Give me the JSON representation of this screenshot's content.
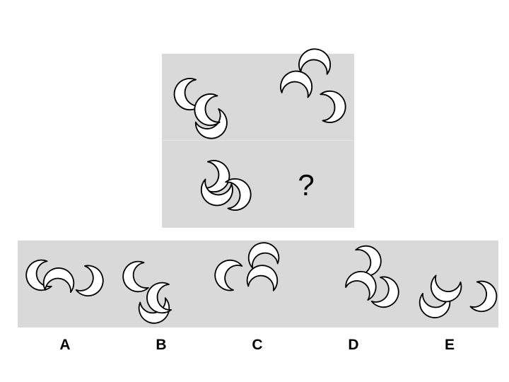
{
  "puzzle": {
    "question_mark": "?",
    "option_labels": [
      "A",
      "B",
      "C",
      "D",
      "E"
    ]
  },
  "colors": {
    "panel_background": "#d9d9d9",
    "stroke": "#000000",
    "crescent_fill": "#ffffff"
  },
  "icons": [
    "crescent-icon"
  ]
}
